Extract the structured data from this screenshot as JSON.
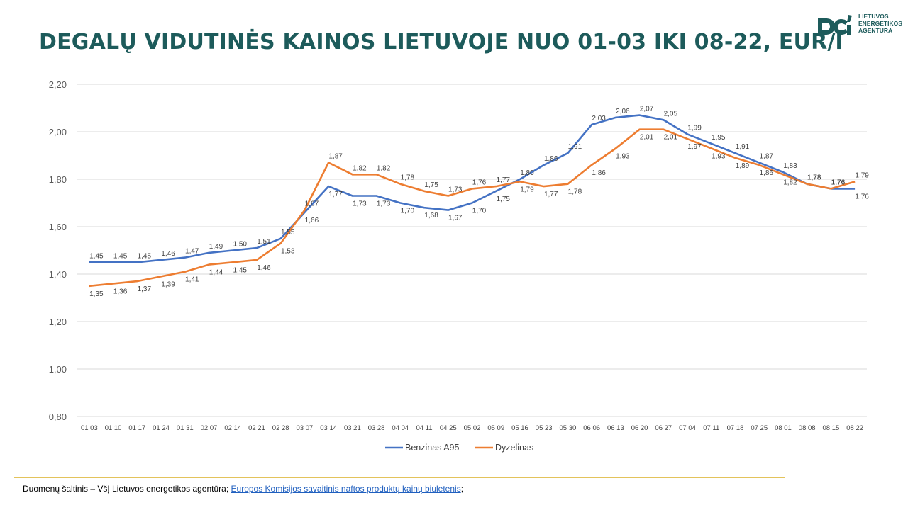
{
  "title": "DEGALŲ VIDUTINĖS KAINOS LIETUVOJE NUO 01-03 IKI 08-22, EUR/l",
  "logo": {
    "lines": [
      "LIETUVOS",
      "ENERGETIKOS",
      "AGENTŪRA"
    ],
    "icon": "lea-logo-icon",
    "color": "#1d5b5b"
  },
  "footer": {
    "source_prefix": "Duomenų šaltinis – VšĮ Lietuvos energetikos agentūra; ",
    "link_text": "Europos Komisijos savaitinis naftos produktų kainų biuletenis",
    "suffix": ";"
  },
  "chart_data": {
    "type": "line",
    "x": [
      "01 03",
      "01 10",
      "01 17",
      "01 24",
      "01 31",
      "02 07",
      "02 14",
      "02 21",
      "02 28",
      "03 07",
      "03 14",
      "03 21",
      "03 28",
      "04 04",
      "04 11",
      "04 25",
      "05 02",
      "05 09",
      "05 16",
      "05 23",
      "05 30",
      "06 06",
      "06 13",
      "06 20",
      "06 27",
      "07 04",
      "07 11",
      "07 18",
      "07 25",
      "08 01",
      "08 08",
      "08 15",
      "08 22"
    ],
    "series": [
      {
        "name": "Benzinas A95",
        "color": "#4472c4",
        "values": [
          1.45,
          1.45,
          1.45,
          1.46,
          1.47,
          1.49,
          1.5,
          1.51,
          1.55,
          1.66,
          1.77,
          1.73,
          1.73,
          1.7,
          1.68,
          1.67,
          1.7,
          1.75,
          1.8,
          1.86,
          1.91,
          2.03,
          2.06,
          2.07,
          2.05,
          1.99,
          1.95,
          1.91,
          1.87,
          1.83,
          1.78,
          1.76,
          1.76
        ]
      },
      {
        "name": "Dyzelinas",
        "color": "#ed7d31",
        "values": [
          1.35,
          1.36,
          1.37,
          1.39,
          1.41,
          1.44,
          1.45,
          1.46,
          1.53,
          1.67,
          1.87,
          1.82,
          1.82,
          1.78,
          1.75,
          1.73,
          1.76,
          1.77,
          1.79,
          1.77,
          1.78,
          1.86,
          1.93,
          2.01,
          2.01,
          1.97,
          1.93,
          1.89,
          1.86,
          1.82,
          1.78,
          1.76,
          1.79
        ]
      }
    ],
    "y_ticks": [
      "0,80",
      "1,00",
      "1,20",
      "1,40",
      "1,60",
      "1,80",
      "2,00",
      "2,20"
    ],
    "ylim": [
      0.8,
      2.2
    ],
    "decimal_separator": ",",
    "grid": true,
    "legend_position": "bottom"
  }
}
